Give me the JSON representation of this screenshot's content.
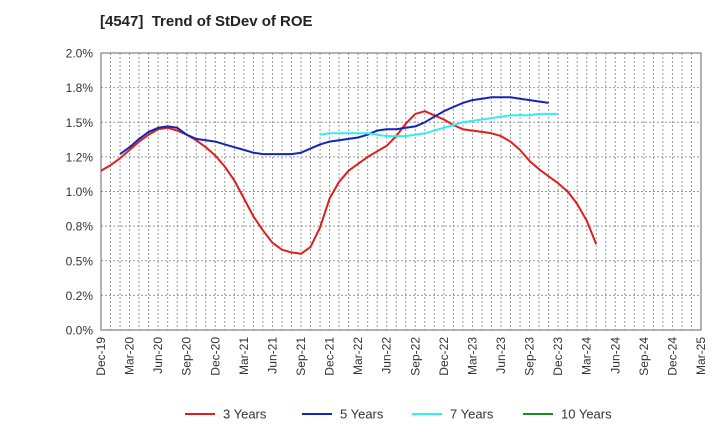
{
  "chart_data": {
    "type": "line",
    "title": "[4547]  Trend of StDev of ROE",
    "xlabel": "",
    "ylabel": "",
    "ylim": [
      0,
      2.0
    ],
    "yticks": [
      "0.0%",
      "0.2%",
      "0.5%",
      "0.8%",
      "1.0%",
      "1.2%",
      "1.5%",
      "1.8%",
      "2.0%"
    ],
    "xticks": [
      "Dec-19",
      "Mar-20",
      "Jun-20",
      "Sep-20",
      "Dec-20",
      "Mar-21",
      "Jun-21",
      "Sep-21",
      "Dec-21",
      "Mar-22",
      "Jun-22",
      "Sep-22",
      "Dec-22",
      "Mar-23",
      "Jun-23",
      "Sep-23",
      "Dec-23",
      "Mar-24",
      "Jun-24",
      "Sep-24",
      "Dec-24",
      "Mar-25"
    ],
    "grid": true,
    "legend_position": "bottom",
    "series": [
      {
        "name": "3 Years",
        "color": "#dd1f1f",
        "start_index": 0,
        "values": [
          1.15,
          1.19,
          1.24,
          1.3,
          1.36,
          1.41,
          1.45,
          1.46,
          1.44,
          1.41,
          1.37,
          1.32,
          1.26,
          1.18,
          1.08,
          0.95,
          0.82,
          0.72,
          0.63,
          0.58,
          0.56,
          0.55,
          0.6,
          0.74,
          0.95,
          1.07,
          1.15,
          1.2,
          1.25,
          1.29,
          1.33,
          1.4,
          1.49,
          1.56,
          1.58,
          1.55,
          1.52,
          1.48,
          1.45,
          1.44,
          1.43,
          1.42,
          1.4,
          1.36,
          1.3,
          1.22,
          1.16,
          1.11,
          1.06,
          1.0,
          0.91,
          0.79,
          0.62
        ]
      },
      {
        "name": "5 Years",
        "color": "#1426b8",
        "start_index": 2,
        "values": [
          1.27,
          1.32,
          1.38,
          1.43,
          1.46,
          1.47,
          1.46,
          1.41,
          1.38,
          1.37,
          1.36,
          1.34,
          1.32,
          1.3,
          1.28,
          1.27,
          1.27,
          1.27,
          1.27,
          1.28,
          1.31,
          1.34,
          1.36,
          1.37,
          1.38,
          1.39,
          1.41,
          1.44,
          1.45,
          1.45,
          1.46,
          1.47,
          1.5,
          1.54,
          1.58,
          1.61,
          1.64,
          1.66,
          1.67,
          1.68,
          1.68,
          1.68,
          1.67,
          1.66,
          1.65,
          1.64
        ]
      },
      {
        "name": "7 Years",
        "color": "#33eeee",
        "start_index": 23,
        "values": [
          1.41,
          1.42,
          1.42,
          1.42,
          1.42,
          1.42,
          1.41,
          1.4,
          1.4,
          1.4,
          1.41,
          1.42,
          1.44,
          1.46,
          1.48,
          1.5,
          1.51,
          1.52,
          1.53,
          1.54,
          1.55,
          1.55,
          1.55,
          1.56,
          1.56,
          1.56
        ]
      },
      {
        "name": "10 Years",
        "color": "#1f8c1f",
        "start_index": 0,
        "values": []
      }
    ]
  }
}
